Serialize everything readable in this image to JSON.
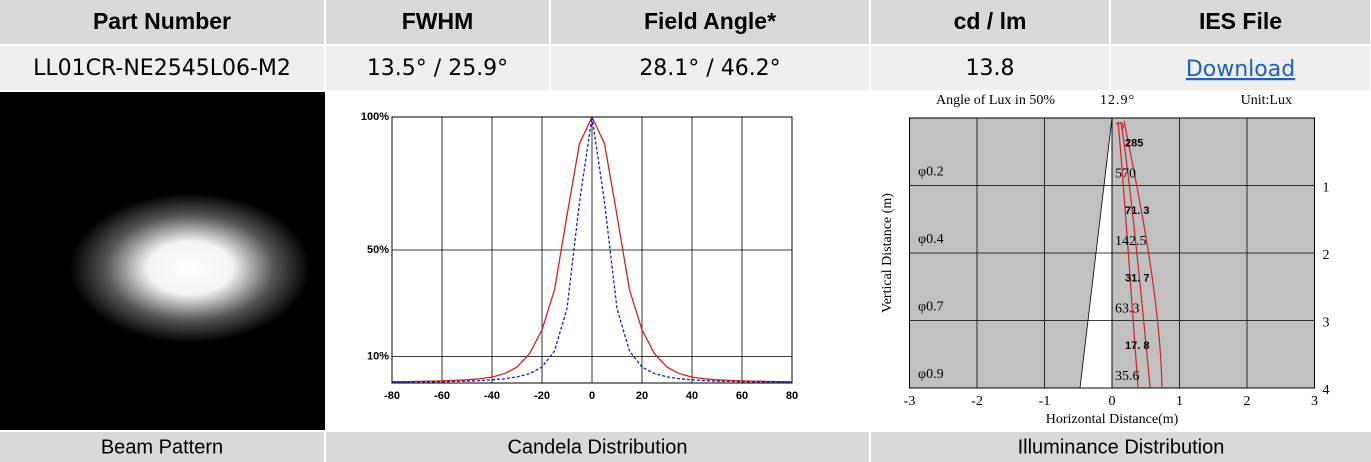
{
  "header": [
    "Part Number",
    "FWHM",
    "Field Angle*",
    "cd / lm",
    "IES File"
  ],
  "row": [
    "LL01CR-NE2545L06-M2",
    "13.5° / 25.9°",
    "28.1° / 46.2°",
    "13.8",
    "Download"
  ],
  "captions": [
    "Beam Pattern",
    "Candela Distribution",
    "Illuminance Distribution"
  ],
  "candela": {
    "type": "line",
    "x": [
      -80,
      -75,
      -70,
      -65,
      -60,
      -55,
      -50,
      -45,
      -40,
      -35,
      -30,
      -25,
      -20,
      -15,
      -10,
      -5,
      0,
      5,
      10,
      15,
      20,
      25,
      30,
      35,
      40,
      45,
      50,
      55,
      60,
      65,
      70,
      75,
      80
    ],
    "series": [
      {
        "color": "#d42020",
        "dash": false,
        "values": [
          0.5,
          0.5,
          0.6,
          0.7,
          0.8,
          1,
          1.2,
          1.6,
          2.2,
          3.5,
          6,
          11,
          20,
          35,
          63,
          90,
          100,
          90,
          63,
          35,
          20,
          11,
          6,
          3.5,
          2.2,
          1.6,
          1.2,
          1,
          0.8,
          0.7,
          0.6,
          0.5,
          0.5
        ]
      },
      {
        "color": "#1a1acc",
        "dash": true,
        "values": [
          0.3,
          0.3,
          0.4,
          0.4,
          0.5,
          0.6,
          0.7,
          0.9,
          1.2,
          1.6,
          2.3,
          3.5,
          6,
          12,
          28,
          68,
          100,
          68,
          28,
          12,
          6,
          3.5,
          2.3,
          1.6,
          1.2,
          0.9,
          0.7,
          0.6,
          0.5,
          0.4,
          0.4,
          0.3,
          0.3
        ]
      }
    ],
    "xlim": [
      -80,
      80
    ],
    "xticks": [
      -80,
      -60,
      -40,
      -20,
      0,
      20,
      40,
      60,
      80
    ],
    "ylim": [
      0,
      100
    ],
    "yticks": [
      {
        "value": 10,
        "label": "10%"
      },
      {
        "value": 50,
        "label": "50%"
      },
      {
        "value": 100,
        "label": "100%"
      }
    ],
    "grid": true
  },
  "illuminance": {
    "title": "Angle of Lux in 50%",
    "angle": "12.9°",
    "unit": "Unit:Lux",
    "ylabel": "Vertical Distance (m)",
    "xlabel": "Horizontal Distance(m)",
    "xlim": [
      -3,
      3
    ],
    "ylim": [
      0,
      4
    ],
    "xticks": [
      -3,
      -2,
      -1,
      0,
      1,
      2,
      3
    ],
    "yticks": [
      1,
      2,
      3,
      4
    ],
    "rows": [
      {
        "diameter": "φ0.2",
        "center": "285",
        "edge": "570"
      },
      {
        "diameter": "φ0.4",
        "center": "71. 3",
        "edge": "142.5"
      },
      {
        "diameter": "φ0.7",
        "center": "31. 7",
        "edge": "63.3"
      },
      {
        "diameter": "φ0.9",
        "center": "17. 8",
        "edge": "35.6"
      }
    ]
  }
}
